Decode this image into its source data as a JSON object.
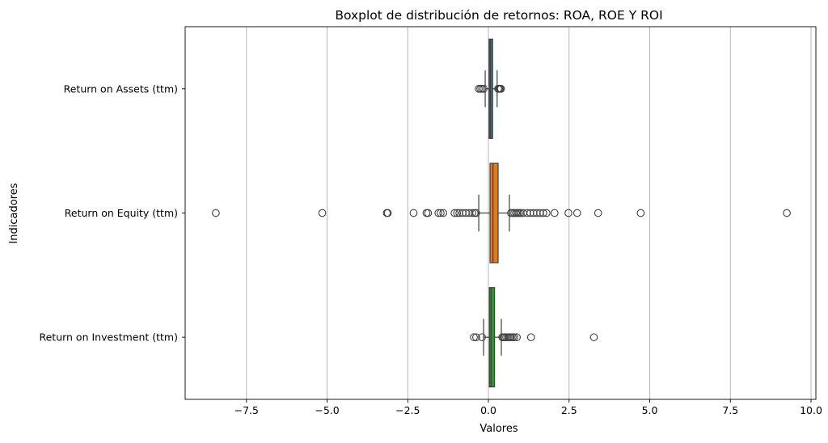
{
  "chart_data": {
    "type": "boxplot",
    "orientation": "horizontal",
    "title": "Boxplot de distribución de retornos: ROA, ROE Y ROI",
    "xlabel": "Valores",
    "ylabel": "Indicadores",
    "xlim": [
      -9.4,
      10.15
    ],
    "xticks": [
      -7.5,
      -5.0,
      -2.5,
      0.0,
      2.5,
      5.0,
      7.5,
      10.0
    ],
    "xtick_labels": [
      "−7.5",
      "−5.0",
      "−2.5",
      "0.0",
      "2.5",
      "5.0",
      "7.5",
      "10.0"
    ],
    "grid": "x",
    "series": [
      {
        "label": "Return on Assets (ttm)",
        "color": "#3a6f94",
        "q1": 0.02,
        "median": 0.06,
        "q3": 0.13,
        "whisker_low": -0.1,
        "whisker_high": 0.27,
        "outliers": [
          -0.3,
          -0.25,
          -0.2,
          -0.15,
          0.3,
          0.33,
          0.36,
          0.39
        ]
      },
      {
        "label": "Return on Equity (ttm)",
        "color": "#e07a1f",
        "q1": 0.05,
        "median": 0.14,
        "q3": 0.3,
        "whisker_low": -0.3,
        "whisker_high": 0.65,
        "outliers": [
          -8.45,
          -5.15,
          -3.15,
          -3.12,
          -2.32,
          -1.92,
          -1.87,
          -1.55,
          -1.48,
          -1.4,
          -1.05,
          -0.97,
          -0.9,
          -0.8,
          -0.7,
          -0.6,
          -0.5,
          -0.43,
          -0.38,
          0.7,
          0.75,
          0.8,
          0.85,
          0.9,
          0.95,
          1.0,
          1.08,
          1.2,
          1.3,
          1.4,
          1.5,
          1.6,
          1.7,
          1.8,
          2.05,
          2.48,
          2.75,
          3.4,
          4.72,
          9.25
        ]
      },
      {
        "label": "Return on Investment (ttm)",
        "color": "#3b8b3b",
        "q1": 0.03,
        "median": 0.08,
        "q3": 0.19,
        "whisker_low": -0.15,
        "whisker_high": 0.4,
        "outliers": [
          -0.45,
          -0.38,
          -0.2,
          0.43,
          0.47,
          0.5,
          0.55,
          0.6,
          0.65,
          0.7,
          0.75,
          0.8,
          0.88,
          1.32,
          3.27
        ]
      }
    ]
  }
}
